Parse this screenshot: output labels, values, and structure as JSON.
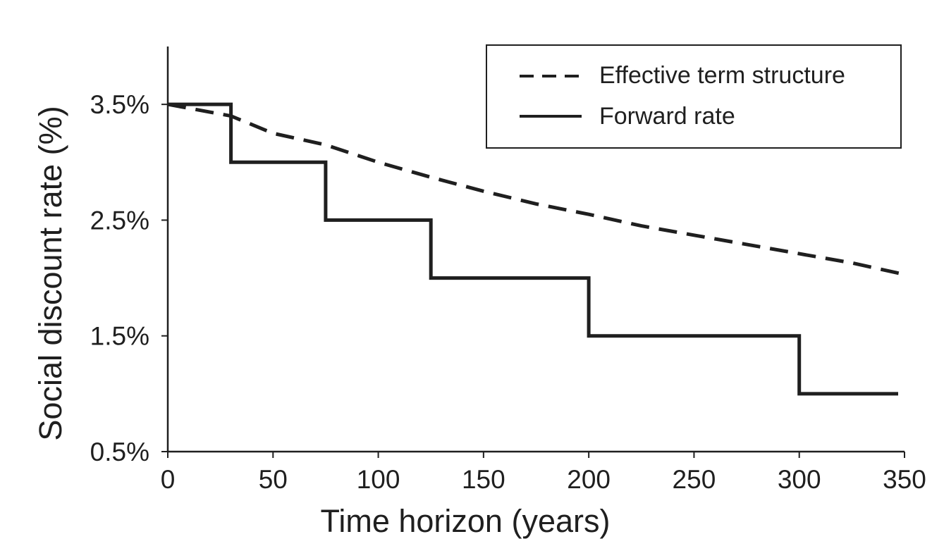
{
  "chart_data": {
    "type": "line",
    "title": "",
    "xlabel": "Time horizon (years)",
    "ylabel": "Social discount rate (%)",
    "xlim": [
      0,
      350
    ],
    "ylim": [
      0.5,
      4.0
    ],
    "x_ticks": [
      0,
      50,
      100,
      150,
      200,
      250,
      300,
      350
    ],
    "x_tick_labels": [
      "0",
      "50",
      "100",
      "150",
      "200",
      "250",
      "300",
      "350"
    ],
    "y_ticks": [
      0.5,
      1.5,
      2.5,
      3.5
    ],
    "y_tick_labels": [
      "0.5%",
      "1.5%",
      "2.5%",
      "3.5%"
    ],
    "grid": false,
    "legend_position": "top-right",
    "series": [
      {
        "name": "Effective term structure",
        "style": "dashed",
        "color": "#1f1f1f",
        "x": [
          0,
          30,
          50,
          75,
          100,
          125,
          150,
          175,
          200,
          225,
          250,
          275,
          300,
          325,
          350
        ],
        "y": [
          3.5,
          3.4,
          3.25,
          3.15,
          3.0,
          2.87,
          2.75,
          2.64,
          2.55,
          2.45,
          2.37,
          2.29,
          2.21,
          2.13,
          2.03
        ]
      },
      {
        "name": "Forward rate",
        "style": "solid",
        "color": "#1f1f1f",
        "x": [
          0,
          30,
          30,
          75,
          75,
          125,
          125,
          200,
          200,
          300,
          300,
          347
        ],
        "y": [
          3.5,
          3.5,
          3.0,
          3.0,
          2.5,
          2.5,
          2.0,
          2.0,
          1.5,
          1.5,
          1.0,
          1.0
        ]
      }
    ]
  }
}
